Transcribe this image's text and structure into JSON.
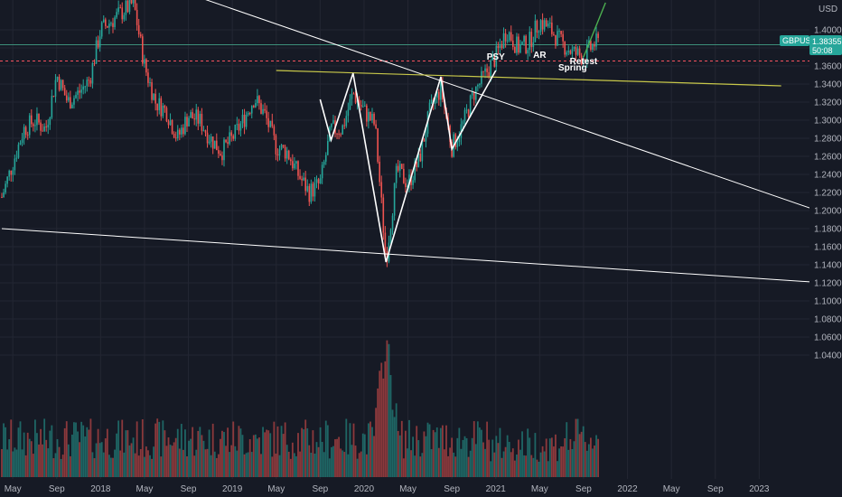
{
  "chart_data": {
    "type": "candlestick",
    "symbol": "GBPUSD",
    "currency": "USD",
    "last_price": "1.38355",
    "countdown": "50:08",
    "colors": {
      "background": "#161a25",
      "grid": "#232632",
      "up": "#26a69a",
      "down": "#ef5350",
      "neutral_line": "#ffffff",
      "support_line": "#c8c84a",
      "price_marker_line": "#3d8f7a",
      "dashed_level": "#f7525f",
      "badge": "#26a69a",
      "forecast": "#4caf50"
    },
    "y_axis": {
      "min": 1.03,
      "max": 1.42,
      "ticks": [
        "1.40000",
        "1.38000",
        "1.36000",
        "1.34000",
        "1.32000",
        "1.30000",
        "1.28000",
        "1.26000",
        "1.24000",
        "1.22000",
        "1.20000",
        "1.18000",
        "1.16000",
        "1.14000",
        "1.12000",
        "1.10000",
        "1.08000",
        "1.06000",
        "1.04000"
      ]
    },
    "x_axis": {
      "labels": [
        "May",
        "Sep",
        "2018",
        "May",
        "Sep",
        "2019",
        "May",
        "Sep",
        "2020",
        "May",
        "Sep",
        "2021",
        "May",
        "Sep",
        "2022",
        "May",
        "Sep",
        "2023"
      ]
    },
    "price_path": [
      [
        "2017-04",
        1.215
      ],
      [
        "2017-06",
        1.29
      ],
      [
        "2017-07",
        1.3
      ],
      [
        "2017-08",
        1.29
      ],
      [
        "2017-09",
        1.35
      ],
      [
        "2017-10",
        1.32
      ],
      [
        "2017-11",
        1.33
      ],
      [
        "2017-12",
        1.345
      ],
      [
        "2018-01",
        1.4
      ],
      [
        "2018-02",
        1.41
      ],
      [
        "2018-03",
        1.42
      ],
      [
        "2018-04",
        1.43
      ],
      [
        "2018-05",
        1.36
      ],
      [
        "2018-06",
        1.32
      ],
      [
        "2018-07",
        1.31
      ],
      [
        "2018-08",
        1.28
      ],
      [
        "2018-09",
        1.305
      ],
      [
        "2018-10",
        1.3
      ],
      [
        "2018-11",
        1.28
      ],
      [
        "2018-12",
        1.265
      ],
      [
        "2019-01",
        1.28
      ],
      [
        "2019-02",
        1.3
      ],
      [
        "2019-03",
        1.325
      ],
      [
        "2019-04",
        1.305
      ],
      [
        "2019-05",
        1.27
      ],
      [
        "2019-06",
        1.265
      ],
      [
        "2019-07",
        1.24
      ],
      [
        "2019-08",
        1.22
      ],
      [
        "2019-09",
        1.23
      ],
      [
        "2019-10",
        1.29
      ],
      [
        "2019-11",
        1.29
      ],
      [
        "2019-12",
        1.33
      ],
      [
        "2020-01",
        1.31
      ],
      [
        "2020-02",
        1.295
      ],
      [
        "2020-03",
        1.145
      ],
      [
        "2020-04",
        1.245
      ],
      [
        "2020-05",
        1.23
      ],
      [
        "2020-06",
        1.255
      ],
      [
        "2020-07",
        1.31
      ],
      [
        "2020-08",
        1.335
      ],
      [
        "2020-09",
        1.27
      ],
      [
        "2020-10",
        1.295
      ],
      [
        "2020-11",
        1.33
      ],
      [
        "2020-12",
        1.35
      ],
      [
        "2021-01",
        1.37
      ],
      [
        "2021-02",
        1.4
      ],
      [
        "2021-03",
        1.38
      ],
      [
        "2021-04",
        1.385
      ],
      [
        "2021-05",
        1.41
      ],
      [
        "2021-06",
        1.4
      ],
      [
        "2021-07",
        1.385
      ],
      [
        "2021-08",
        1.375
      ],
      [
        "2021-09",
        1.37
      ],
      [
        "2021-10",
        1.385
      ]
    ],
    "drawings": {
      "descending_trendline": [
        [
          "2018-09",
          1.44
        ],
        [
          "2023-07",
          1.197
        ]
      ],
      "lower_trendline": [
        [
          "2017-04",
          1.18
        ],
        [
          "2023-07",
          1.12
        ]
      ],
      "neckline": [
        [
          "2019-05",
          1.355
        ],
        [
          "2023-03",
          1.338
        ]
      ],
      "forecast_line": [
        [
          "2021-09",
          1.37
        ],
        [
          "2021-10",
          1.4
        ],
        [
          "2021-11",
          1.43
        ]
      ],
      "wave_pattern": [
        [
          "2019-09",
          1.323
        ],
        [
          "2019-10",
          1.278
        ],
        [
          "2019-12",
          1.352
        ],
        [
          "2020-03",
          1.143
        ],
        [
          "2020-08",
          1.348
        ],
        [
          "2020-09",
          1.268
        ],
        [
          "2021-01",
          1.355
        ]
      ]
    },
    "annotations": [
      {
        "label": "PSY",
        "at": [
          "2021-01",
          1.367
        ]
      },
      {
        "label": "AR",
        "at": [
          "2021-05",
          1.369
        ]
      },
      {
        "label": "Spring",
        "at": [
          "2021-08",
          1.355
        ]
      },
      {
        "label": "Retest",
        "at": [
          "2021-09",
          1.362
        ]
      }
    ],
    "volume": {
      "spike_at": "2020-03"
    }
  }
}
